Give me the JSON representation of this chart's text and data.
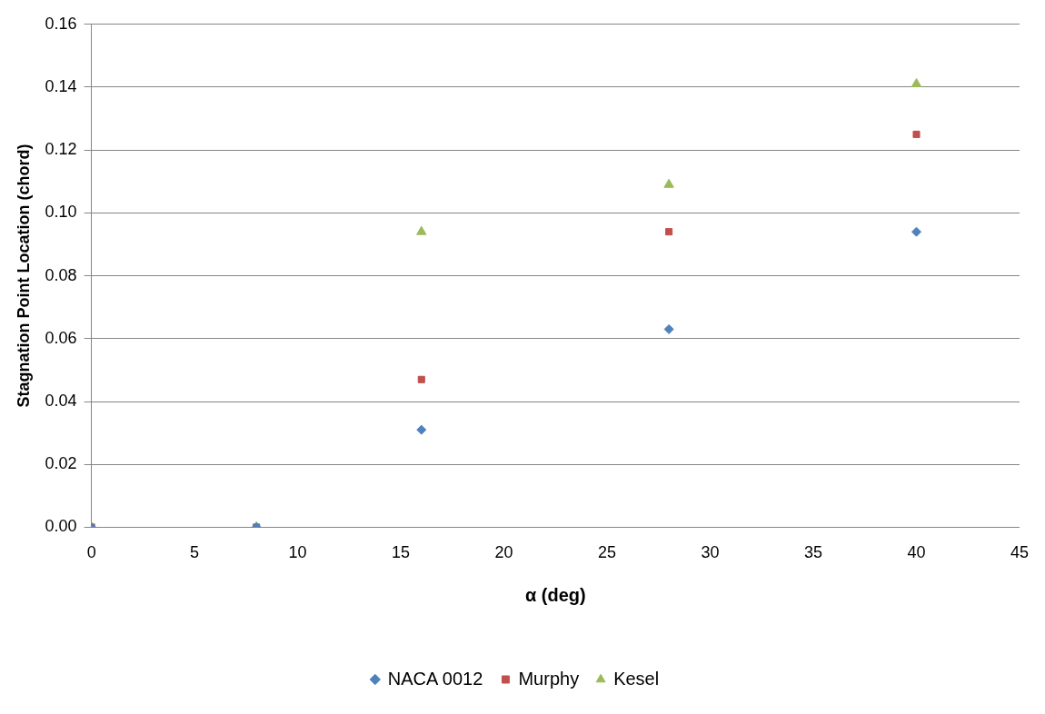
{
  "chart_data": {
    "type": "scatter",
    "xlabel": "α (deg)",
    "ylabel": "Stagnation Point Location (chord)",
    "xlim": [
      0,
      45
    ],
    "xticks": [
      0,
      5,
      10,
      15,
      20,
      25,
      30,
      35,
      40,
      45
    ],
    "ylim": [
      0,
      0.16
    ],
    "yticks": [
      {
        "value": 0,
        "label": "0.00"
      },
      {
        "value": 0.02,
        "label": "0.02"
      },
      {
        "value": 0.04,
        "label": "0.04"
      },
      {
        "value": 0.06,
        "label": "0.06"
      },
      {
        "value": 0.08,
        "label": "0.08"
      },
      {
        "value": 0.1,
        "label": "0.10"
      },
      {
        "value": 0.12,
        "label": "0.12"
      },
      {
        "value": 0.14,
        "label": "0.14"
      },
      {
        "value": 0.16,
        "label": "0.16"
      }
    ],
    "grid": "y",
    "legend": "bottom",
    "series": [
      {
        "name": "NACA 0012",
        "color": "#4f81bd",
        "marker": "diamond",
        "x": [
          0,
          8,
          16,
          28,
          40
        ],
        "values": [
          0,
          0,
          0.031,
          0.063,
          0.094
        ]
      },
      {
        "name": "Murphy",
        "color": "#c0504d",
        "marker": "square",
        "x": [
          0,
          8,
          16,
          28,
          40
        ],
        "values": [
          0,
          0,
          0.047,
          0.094,
          0.125
        ]
      },
      {
        "name": "Kesel",
        "color": "#9bbb59",
        "marker": "triangle",
        "x": [
          0,
          8,
          16,
          28,
          40
        ],
        "values": [
          0,
          0,
          0.094,
          0.109,
          0.141
        ]
      }
    ]
  }
}
